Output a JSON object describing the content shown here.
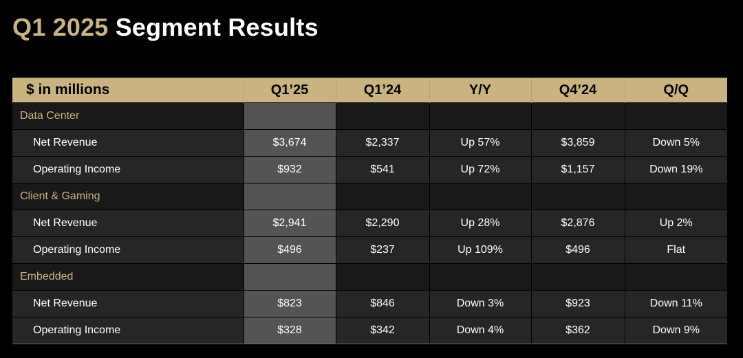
{
  "title": {
    "part1": "Q1 2025",
    "part2": "Segment Results"
  },
  "table": {
    "headers": [
      "$ in millions",
      "Q1’25",
      "Q1’24",
      "Y/Y",
      "Q4’24",
      "Q/Q"
    ],
    "sections": [
      {
        "name": "Data Center",
        "rows": [
          [
            "Net Revenue",
            "$3,674",
            "$2,337",
            "Up 57%",
            "$3,859",
            "Down 5%"
          ],
          [
            "Operating Income",
            "$932",
            "$541",
            "Up 72%",
            "$1,157",
            "Down 19%"
          ]
        ]
      },
      {
        "name": "Client & Gaming",
        "rows": [
          [
            "Net Revenue",
            "$2,941",
            "$2,290",
            "Up 28%",
            "$2,876",
            "Up 2%"
          ],
          [
            "Operating Income",
            "$496",
            "$237",
            "Up 109%",
            "$496",
            "Flat"
          ]
        ]
      },
      {
        "name": "Embedded",
        "rows": [
          [
            "Net Revenue",
            "$823",
            "$846",
            "Down 3%",
            "$923",
            "Down 11%"
          ],
          [
            "Operating Income",
            "$328",
            "$342",
            "Down 4%",
            "$362",
            "Down 9%"
          ]
        ]
      }
    ]
  },
  "colors": {
    "accent": "#c9b37e",
    "background": "#000000",
    "highlight_column": "#545454"
  }
}
